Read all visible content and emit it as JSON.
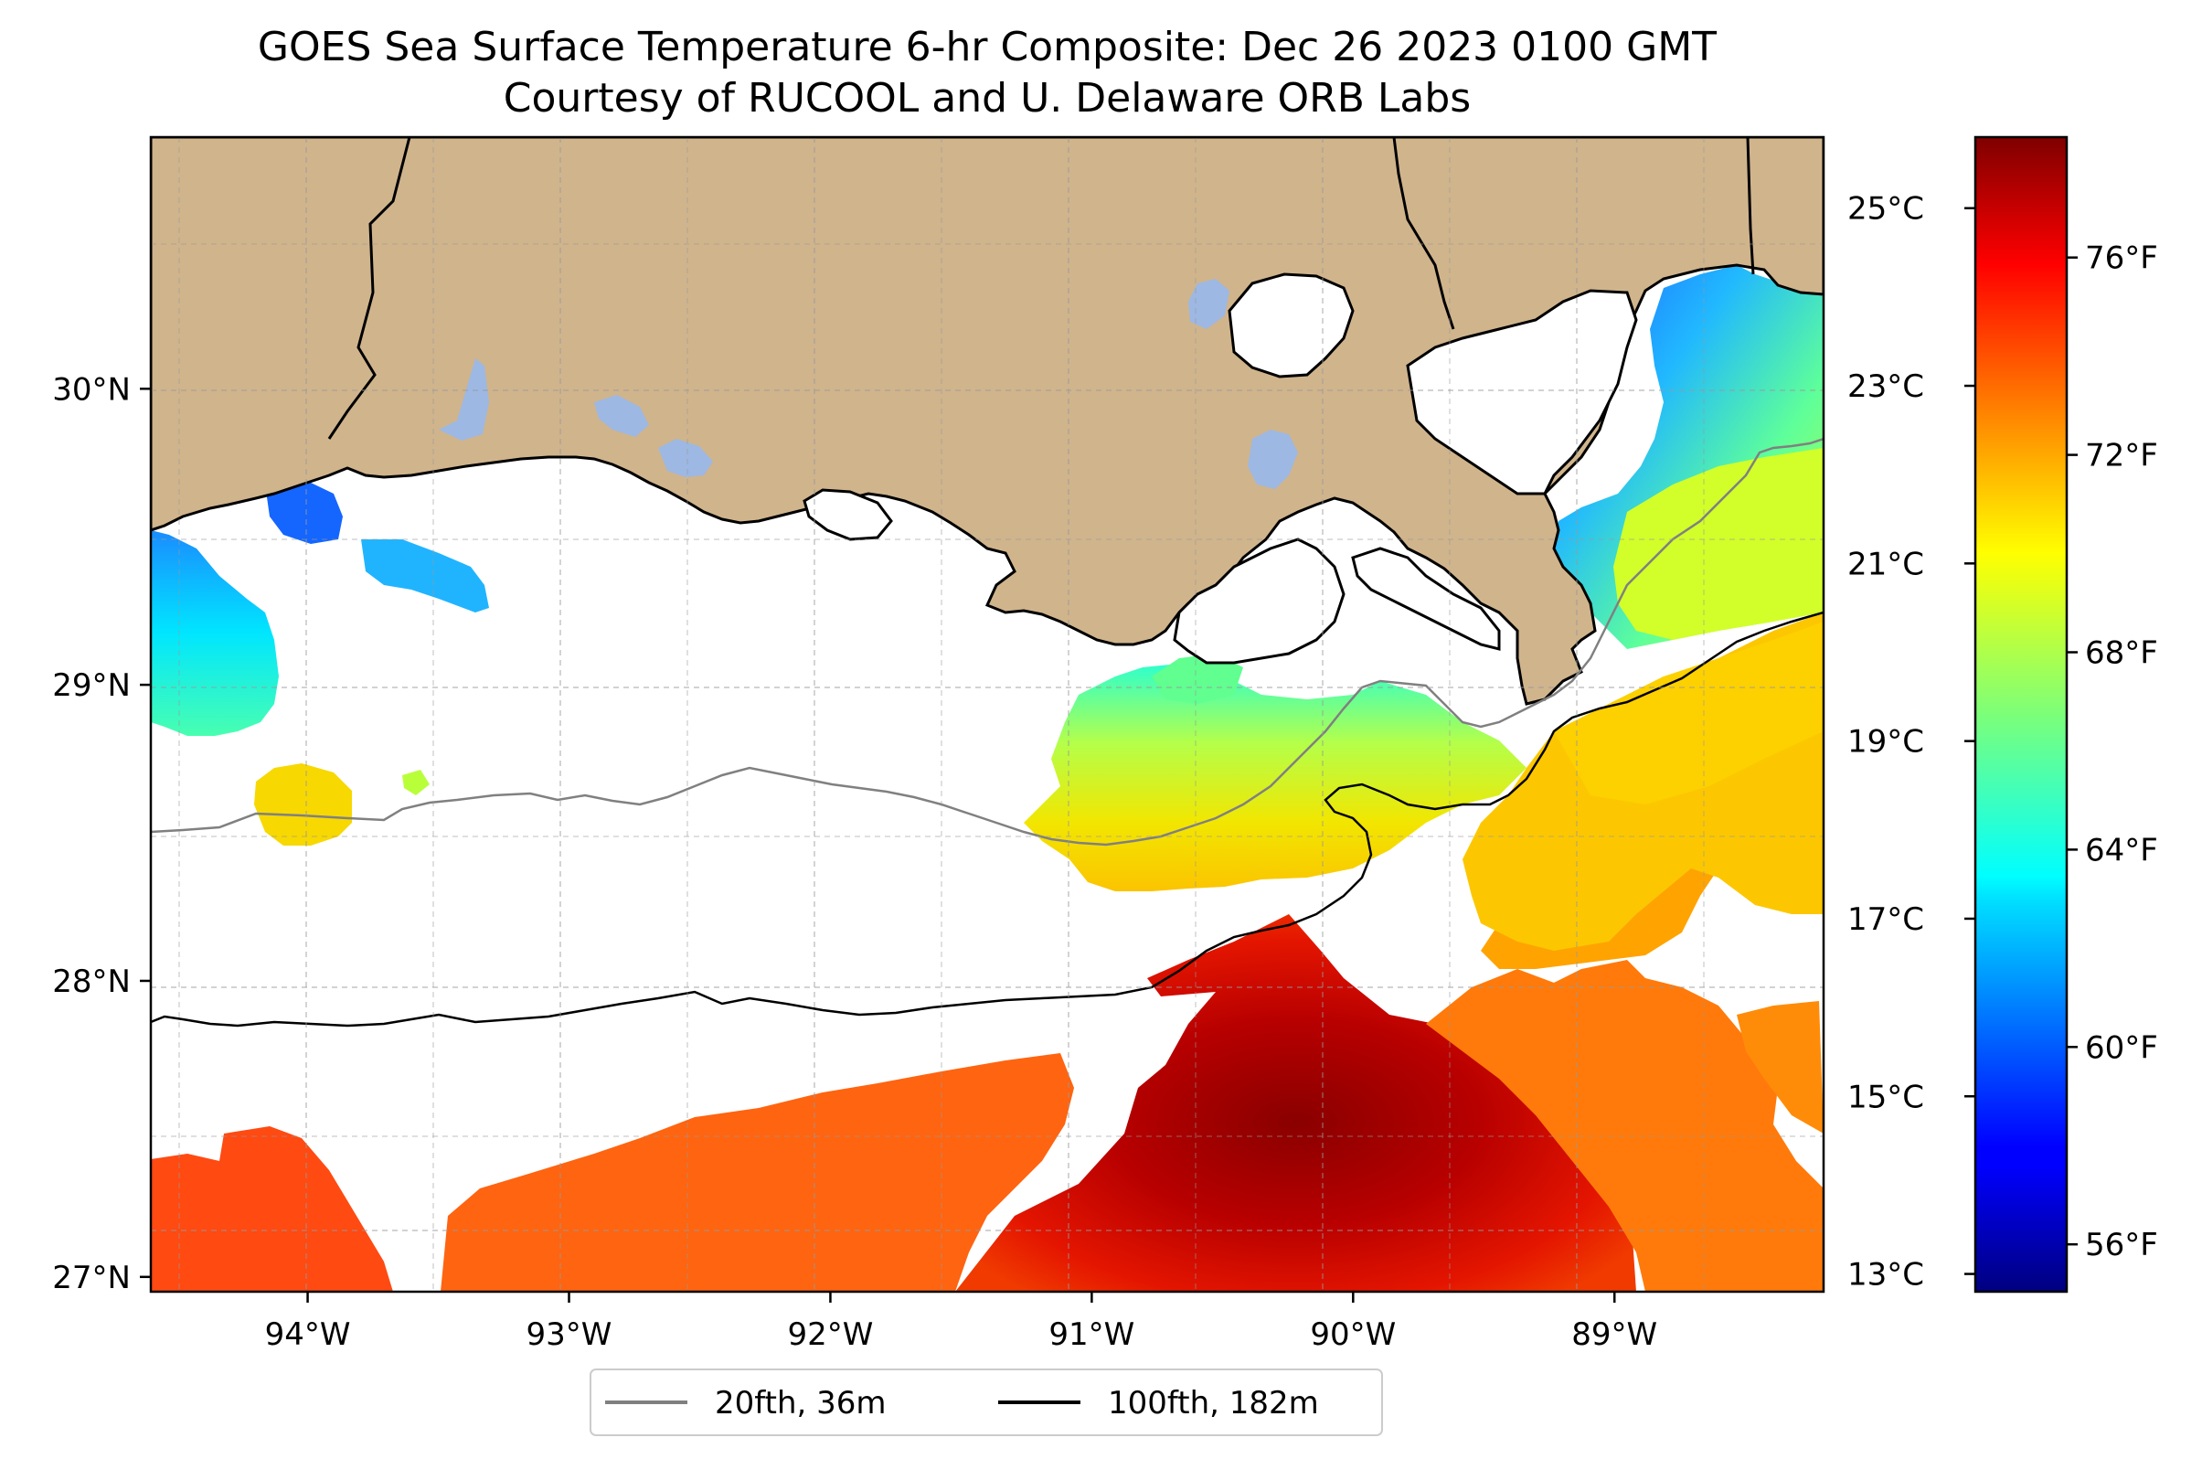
{
  "title": {
    "line1": "GOES Sea Surface Temperature 6-hr Composite: Dec 26 2023 0100 GMT",
    "line2": "Courtesy of RUCOOL and U. Delaware ORB Labs"
  },
  "map": {
    "lon_range": [
      -94.6,
      -88.2
    ],
    "lat_range": [
      26.95,
      30.85
    ],
    "lon_ticks": [
      -94,
      -93,
      -92,
      -91,
      -90,
      -89
    ],
    "lat_ticks": [
      27,
      28,
      29,
      30
    ],
    "lon_tick_labels": [
      "94°W",
      "93°W",
      "92°W",
      "91°W",
      "90°W",
      "89°W"
    ],
    "lat_tick_labels": [
      "27°N",
      "28°N",
      "29°N",
      "30°N"
    ],
    "gridlines": true,
    "land_color": "#D0B48C",
    "inland_water_color": "#9DB8E3",
    "no_data_color": "#FFFFFF"
  },
  "colorbar": {
    "colormap": "jet",
    "range_c": [
      12.8,
      25.8
    ],
    "celsius_ticks": [
      13,
      15,
      17,
      19,
      21,
      23,
      25
    ],
    "celsius_labels": [
      "13°C",
      "15°C",
      "17°C",
      "19°C",
      "21°C",
      "23°C",
      "25°C"
    ],
    "fahrenheit_ticks": [
      56,
      60,
      64,
      68,
      72,
      76
    ],
    "fahrenheit_labels": [
      "56°F",
      "60°F",
      "64°F",
      "68°F",
      "72°F",
      "76°F"
    ]
  },
  "legend": {
    "placement": "below-map",
    "items": [
      {
        "label": "20fth, 36m",
        "color": "#808080"
      },
      {
        "label": "100fth, 182m",
        "color": "#000000"
      }
    ]
  }
}
